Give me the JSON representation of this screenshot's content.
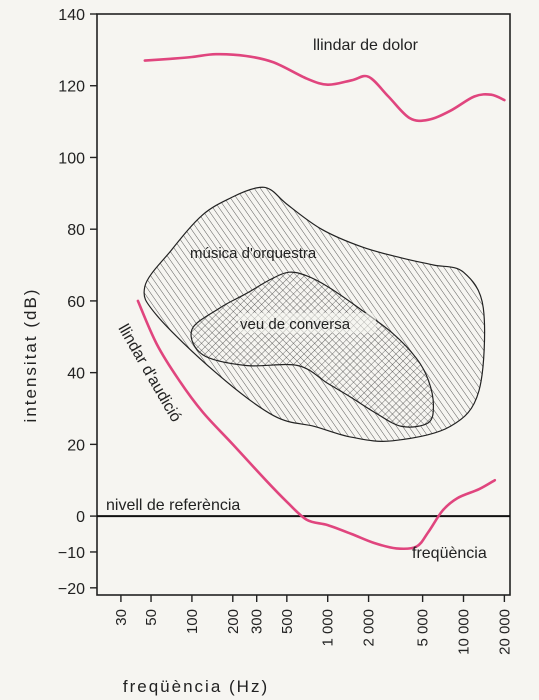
{
  "chart_data": {
    "type": "area",
    "ylabel": "intensitat (dB)",
    "xlabel": "freqüència (Hz)",
    "x_scale": "log",
    "xlim": [
      20,
      22000
    ],
    "ylim": [
      -22,
      140
    ],
    "y_ticks": [
      -20,
      -10,
      0,
      20,
      40,
      60,
      80,
      100,
      120,
      140
    ],
    "y_tick_labels": [
      "−20",
      "−10",
      "0",
      "20",
      "40",
      "60",
      "80",
      "100",
      "120",
      "140"
    ],
    "x_ticks": [
      30,
      50,
      100,
      200,
      300,
      500,
      1000,
      2000,
      5000,
      10000,
      20000
    ],
    "x_tick_labels": [
      "30",
      "50",
      "100",
      "200",
      "300",
      "500",
      "1 000",
      "2 000",
      "5 000",
      "10 000",
      "20 000"
    ],
    "grid": false,
    "colors": {
      "threshold": "#e0457e",
      "ink": "#222222",
      "background": "#f6f5f1"
    },
    "reference_line": {
      "y": 0,
      "label": "nivell de referència"
    },
    "series": [
      {
        "name": "llindar de dolor",
        "x": [
          45,
          70,
          100,
          150,
          250,
          400,
          700,
          1000,
          1500,
          2000,
          2800,
          4000,
          5500,
          8000,
          12000,
          16000,
          20000
        ],
        "y": [
          127,
          127.5,
          128,
          128.8,
          128.3,
          126.5,
          122,
          120.3,
          121.5,
          122.5,
          117,
          111,
          110.5,
          113,
          117,
          117.5,
          116
        ]
      },
      {
        "name": "llindar d'audició",
        "x": [
          40,
          55,
          80,
          120,
          200,
          350,
          500,
          700,
          1000,
          1500,
          2200,
          3200,
          4500,
          5500,
          7000,
          9000,
          13000,
          17000
        ],
        "y": [
          60,
          48,
          38,
          29,
          20,
          10,
          4,
          -1,
          -2.5,
          -5,
          -7.5,
          -9,
          -8.5,
          -4.5,
          1.5,
          5,
          7.5,
          10
        ]
      },
      {
        "name": "música d'orquestra",
        "shape": "region",
        "x": [
          45,
          70,
          120,
          200,
          300,
          380,
          500,
          900,
          1800,
          3500,
          6000,
          10000,
          14000,
          13000,
          8000,
          3000,
          1500,
          800,
          400,
          150,
          55
        ],
        "y": [
          64,
          74,
          84,
          89,
          91.5,
          91,
          87,
          80,
          75,
          72,
          70,
          68,
          58,
          35,
          25,
          21,
          22,
          25,
          28,
          40,
          56
        ]
      },
      {
        "name": "veu de conversa",
        "shape": "region",
        "x": [
          100,
          160,
          250,
          380,
          520,
          700,
          1000,
          1700,
          3000,
          4500,
          5500,
          6000,
          5500,
          3500,
          2200,
          1500,
          1000,
          600,
          250,
          120
        ],
        "y": [
          52,
          58,
          62,
          66,
          68,
          67,
          64,
          58,
          51,
          44,
          38,
          31,
          26,
          25,
          29,
          33,
          37,
          42,
          42,
          45
        ]
      }
    ],
    "annotations": [
      "llindar de dolor",
      "música d'orquestra",
      "veu de conversa",
      "llindar d'audició",
      "freqüència"
    ]
  }
}
